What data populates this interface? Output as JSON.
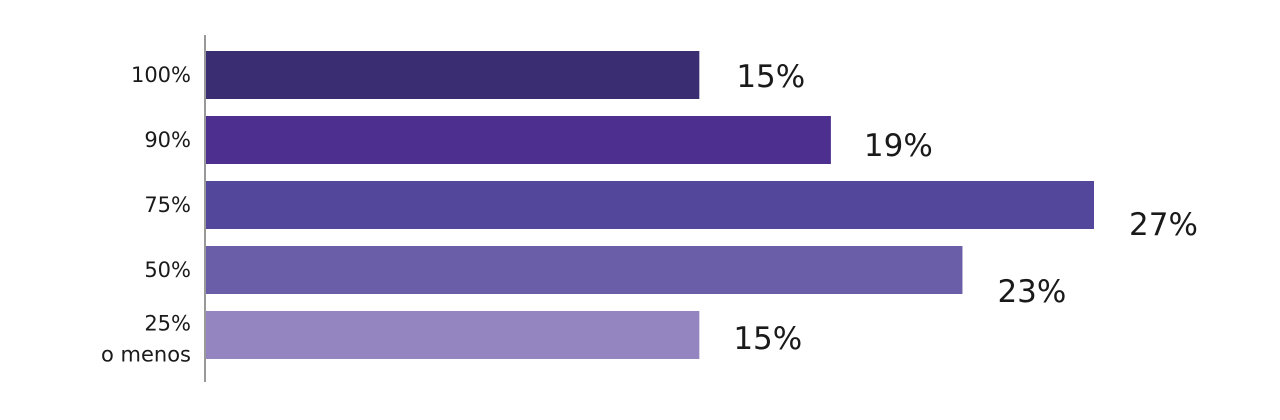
{
  "chart_data": {
    "type": "bar",
    "orientation": "horizontal",
    "categories": [
      "100%",
      "90%",
      "75%",
      "50%",
      "25%\no menos"
    ],
    "values": [
      15,
      19,
      27,
      23,
      15
    ],
    "value_labels": [
      "15%",
      "19%",
      "27%",
      "23%",
      "15%"
    ],
    "colors": [
      "#3a2d72",
      "#4c2f8f",
      "#52479a",
      "#6a5ea8",
      "#9484bf"
    ],
    "xlim": [
      0,
      27
    ],
    "title": "",
    "xlabel": "",
    "ylabel": "",
    "grid": false,
    "legend": "none"
  }
}
